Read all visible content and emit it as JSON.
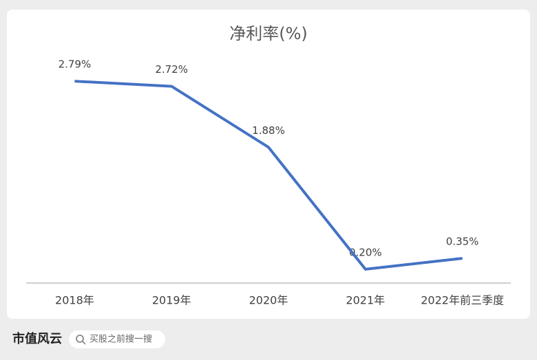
{
  "chart_data": {
    "type": "line",
    "title": "净利率(%)",
    "categories": [
      "2018年",
      "2019年",
      "2020年",
      "2021年",
      "2022年前三季度"
    ],
    "values": [
      2.79,
      2.72,
      1.88,
      0.2,
      0.35
    ],
    "value_labels": [
      "2.79%",
      "2.72%",
      "1.88%",
      "0.20%",
      "0.35%"
    ],
    "color": "#4472c4",
    "ylim": [
      0,
      3
    ]
  },
  "footer": {
    "logo": "市值风云",
    "search": "买股之前搜一搜"
  }
}
